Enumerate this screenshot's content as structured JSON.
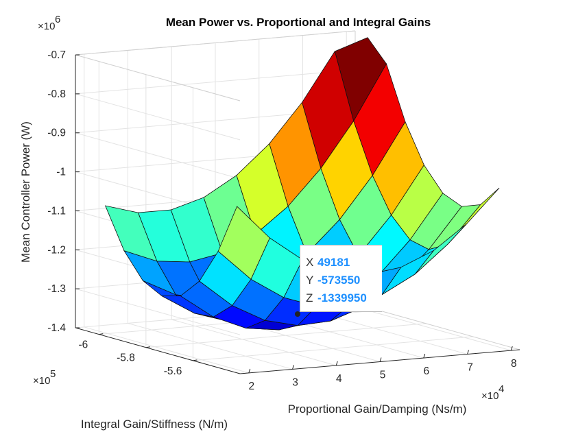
{
  "chart_data": {
    "type": "surface",
    "title": "Mean Power vs. Proportional and Integral Gains",
    "xlabel": "Proportional Gain/Damping (Ns/m)",
    "ylabel": "Integral Gain/Stiffness (N/m)",
    "zlabel": "Mean Controller Power (W)",
    "x_exponent": "4",
    "y_exponent": "5",
    "z_exponent": "6",
    "exponent_base": "×10",
    "x_ticks": [
      "2",
      "3",
      "4",
      "5",
      "6",
      "7",
      "8"
    ],
    "y_ticks": [
      "-5.6",
      "-5.8",
      "-6"
    ],
    "z_ticks": [
      "-0.7",
      "-0.8",
      "-0.9",
      "-1",
      "-1.1",
      "-1.2",
      "-1.3",
      "-1.4"
    ],
    "xlim": [
      18000,
      82000
    ],
    "ylim": [
      -610000,
      -540000
    ],
    "zlim": [
      -1400000,
      -700000
    ],
    "grid": true,
    "colormap": "jet",
    "datatip": {
      "x_label": "X",
      "x_value": "49181",
      "y_label": "Y",
      "y_value": "-573550",
      "z_label": "Z",
      "z_value": "-1339950"
    }
  }
}
